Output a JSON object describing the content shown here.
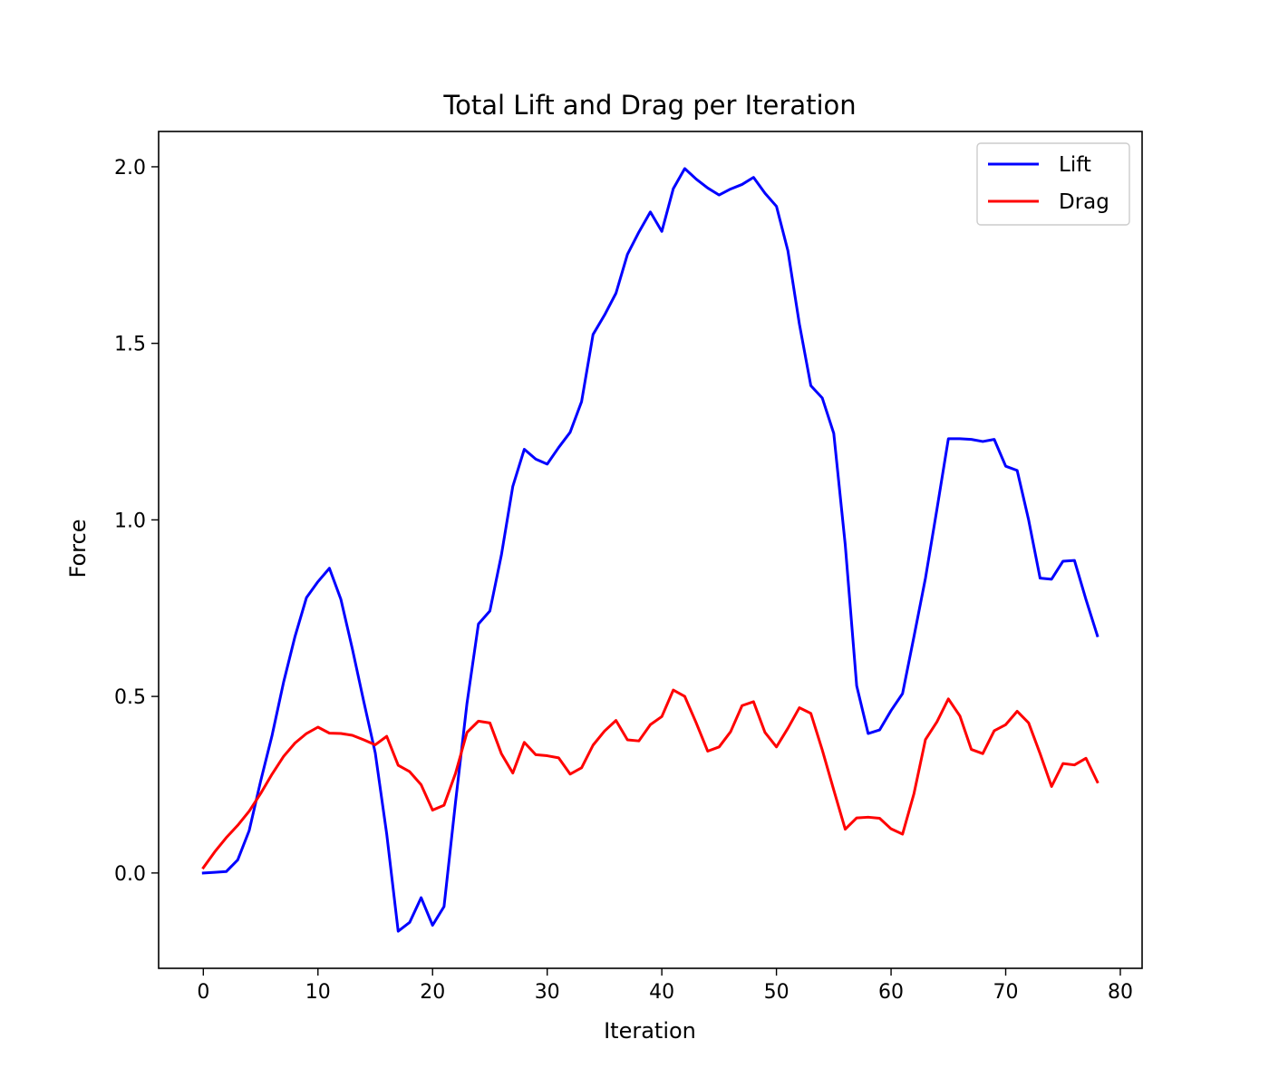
{
  "chart_data": {
    "type": "line",
    "title": "Total Lift and Drag per Iteration",
    "xlabel": "Iteration",
    "ylabel": "Force",
    "xlim": [
      -3.9,
      81.9
    ],
    "ylim": [
      -0.27,
      2.1
    ],
    "xticks": [
      0,
      10,
      20,
      30,
      40,
      50,
      60,
      70,
      80
    ],
    "yticks": [
      0.0,
      0.5,
      1.0,
      1.5,
      2.0
    ],
    "grid": false,
    "legend_position": "upper right",
    "x": [
      0,
      1,
      2,
      3,
      4,
      5,
      6,
      7,
      8,
      9,
      10,
      11,
      12,
      13,
      14,
      15,
      16,
      17,
      18,
      19,
      20,
      21,
      22,
      23,
      24,
      25,
      26,
      27,
      28,
      29,
      30,
      31,
      32,
      33,
      34,
      35,
      36,
      37,
      38,
      39,
      40,
      41,
      42,
      43,
      44,
      45,
      46,
      47,
      48,
      49,
      50,
      51,
      52,
      53,
      54,
      55,
      56,
      57,
      58,
      59,
      60,
      61,
      62,
      63,
      64,
      65,
      66,
      67,
      68,
      69,
      70,
      71,
      72,
      73,
      74,
      75,
      76,
      77,
      78
    ],
    "series": [
      {
        "name": "Lift",
        "color": "#0000ff",
        "values": [
          0.0,
          0.002,
          0.004,
          0.037,
          0.12,
          0.26,
          0.39,
          0.54,
          0.67,
          0.78,
          0.825,
          0.863,
          0.775,
          0.635,
          0.485,
          0.34,
          0.11,
          -0.165,
          -0.14,
          -0.07,
          -0.148,
          -0.095,
          0.2,
          0.48,
          0.705,
          0.742,
          0.9,
          1.095,
          1.2,
          1.172,
          1.158,
          1.205,
          1.248,
          1.335,
          1.525,
          1.58,
          1.642,
          1.752,
          1.815,
          1.872,
          1.817,
          1.938,
          1.995,
          1.965,
          1.94,
          1.92,
          1.937,
          1.95,
          1.97,
          1.925,
          1.888,
          1.762,
          1.555,
          1.38,
          1.345,
          1.245,
          0.93,
          0.53,
          0.395,
          0.405,
          0.46,
          0.508,
          0.67,
          0.835,
          1.03,
          1.23,
          1.23,
          1.228,
          1.222,
          1.228,
          1.152,
          1.14,
          1.0,
          0.835,
          0.832,
          0.883,
          0.885,
          0.775,
          0.672
        ]
      },
      {
        "name": "Drag",
        "color": "#ff0000",
        "values": [
          0.015,
          0.06,
          0.1,
          0.135,
          0.175,
          0.225,
          0.28,
          0.33,
          0.368,
          0.395,
          0.413,
          0.396,
          0.395,
          0.39,
          0.377,
          0.363,
          0.387,
          0.305,
          0.287,
          0.25,
          0.178,
          0.192,
          0.282,
          0.398,
          0.43,
          0.425,
          0.338,
          0.283,
          0.37,
          0.335,
          0.332,
          0.326,
          0.28,
          0.298,
          0.362,
          0.402,
          0.432,
          0.377,
          0.374,
          0.42,
          0.443,
          0.518,
          0.5,
          0.425,
          0.345,
          0.357,
          0.4,
          0.474,
          0.485,
          0.398,
          0.357,
          0.41,
          0.468,
          0.452,
          0.348,
          0.235,
          0.124,
          0.156,
          0.158,
          0.155,
          0.125,
          0.11,
          0.225,
          0.378,
          0.428,
          0.493,
          0.445,
          0.35,
          0.338,
          0.403,
          0.42,
          0.458,
          0.425,
          0.338,
          0.245,
          0.31,
          0.306,
          0.325,
          0.258
        ]
      }
    ]
  }
}
